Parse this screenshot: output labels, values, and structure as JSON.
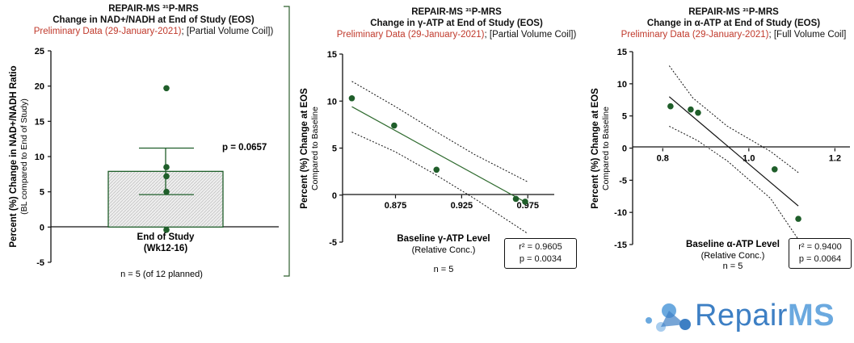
{
  "colors": {
    "green": "#1f5e2a",
    "accent_red": "#c0392b",
    "logo_blue": "#3d7fc4"
  },
  "logo": {
    "name_a": "Repair",
    "name_b": "MS"
  },
  "chart_data": [
    {
      "type": "bar",
      "title_line1": "REPAIR-MS ³¹P-MRS",
      "title_line2": "Change in NAD+/NADH at End of Study (EOS)",
      "subtitle_red": "Preliminary Data (29-January-2021)",
      "subtitle_rest": "; [Partial Volume Coil])",
      "categories": [
        "End of Study"
      ],
      "category_sublabel": "(Wk12-16)",
      "values": [
        7.9
      ],
      "error": [
        3.3
      ],
      "points": [
        19.7,
        8.5,
        7.2,
        5.0,
        -0.4
      ],
      "ylabel": "Percent (%) Change in NAD+/NADH Ratio",
      "ylabel2": "(BL compared to End of Study)",
      "ylim": [
        -5,
        25
      ],
      "yticks": [
        -5,
        0,
        5,
        10,
        15,
        20,
        25
      ],
      "annotation": "p = 0.0657",
      "footnote": "n = 5 (of 12 planned)"
    },
    {
      "type": "scatter",
      "title_line1": "REPAIR-MS ³¹P-MRS",
      "title_line2": "Change in  γ-ATP at End of Study (EOS)",
      "subtitle_red": "Preliminary Data (29-January-2021)",
      "subtitle_rest": "; [Partial Volume Coil])",
      "x": [
        0.842,
        0.874,
        0.906,
        0.966,
        0.973
      ],
      "y": [
        10.3,
        7.4,
        2.7,
        -0.4,
        -0.7
      ],
      "xlim": [
        0.835,
        0.995
      ],
      "ylim": [
        -5,
        15
      ],
      "xticks": [
        0.875,
        0.925,
        0.975
      ],
      "xtick_labels": [
        "0.875",
        "0.925",
        "0.975"
      ],
      "yticks": [
        -5,
        0,
        5,
        10,
        15
      ],
      "ylabel": "Percent (%) Change at EOS",
      "ylabel2": "Compared to Baseline",
      "xlabel": "Baseline  γ-ATP Level",
      "xlabel2": "(Relative Conc.)",
      "n_label": "n = 5",
      "stats_r2": "r² = 0.9605",
      "stats_p": "p = 0.0034",
      "fit_line": [
        [
          0.842,
          9.4
        ],
        [
          0.975,
          -0.9
        ]
      ],
      "ci_upper": [
        [
          0.842,
          12.1
        ],
        [
          0.875,
          9.4
        ],
        [
          0.905,
          6.8
        ],
        [
          0.935,
          4.3
        ],
        [
          0.975,
          1.4
        ]
      ],
      "ci_lower": [
        [
          0.842,
          6.7
        ],
        [
          0.875,
          4.6
        ],
        [
          0.905,
          2.2
        ],
        [
          0.935,
          -0.4
        ],
        [
          0.975,
          -4.1
        ]
      ]
    },
    {
      "type": "scatter",
      "title_line1": "REPAIR-MS ³¹P-MRS",
      "title_line2": "Change in  α-ATP at End of Study (EOS)",
      "subtitle_red": "Preliminary Data (29-January-2021)",
      "subtitle_rest": "; [Full Volume Coil]",
      "x": [
        0.818,
        0.865,
        0.882,
        1.06,
        1.115
      ],
      "y": [
        6.5,
        6.0,
        5.5,
        -3.3,
        -11.0
      ],
      "xlim": [
        0.73,
        1.235
      ],
      "ylim": [
        -15,
        15
      ],
      "xticks": [
        0.8,
        1.0,
        1.2
      ],
      "xtick_labels": [
        "0.8",
        "1.0",
        "1.2"
      ],
      "yticks": [
        -15,
        -10,
        -5,
        0,
        5,
        10,
        15
      ],
      "ylabel": "Percent (%) Change at EOS",
      "ylabel2": "Compared to Baseline",
      "xlabel": "Baseline α-ATP Level",
      "xlabel2": "(Relative Conc.)",
      "n_label": "n = 5",
      "stats_r2": "r² = 0.9400",
      "stats_p": "p = 0.0064",
      "fit_line": [
        [
          0.815,
          8.0
        ],
        [
          1.115,
          -9.0
        ]
      ],
      "ci_upper": [
        [
          0.815,
          12.8
        ],
        [
          0.87,
          7.8
        ],
        [
          0.95,
          3.4
        ],
        [
          1.05,
          -0.5
        ],
        [
          1.115,
          -3.8
        ]
      ],
      "ci_lower": [
        [
          0.815,
          3.4
        ],
        [
          0.88,
          1.2
        ],
        [
          0.95,
          -2.0
        ],
        [
          1.05,
          -7.8
        ],
        [
          1.115,
          -14.2
        ]
      ]
    }
  ]
}
